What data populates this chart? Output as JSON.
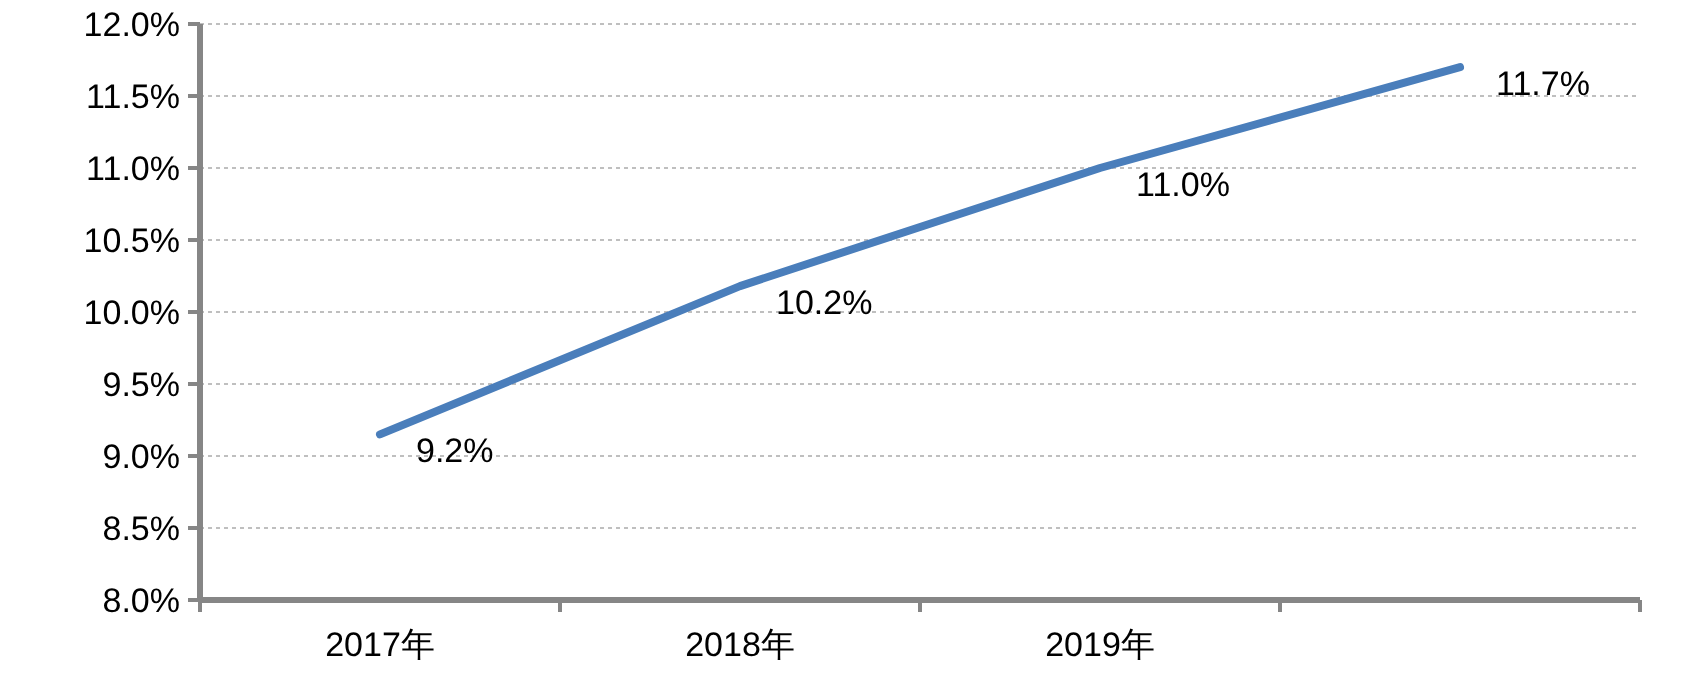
{
  "chart_data": {
    "type": "line",
    "categories": [
      "2017年",
      "2018年",
      "2019年",
      null
    ],
    "series": [
      {
        "color": "#4a7ebb",
        "values": [
          9.15,
          10.18,
          11.0,
          11.7
        ],
        "value_labels": [
          "9.2%",
          "10.2%",
          "11.0%",
          "11.7%"
        ]
      }
    ],
    "ylim": [
      8,
      12
    ],
    "yticks": [
      {
        "value": 8,
        "label": "8.0%"
      },
      {
        "value": 8.5,
        "label": "8.5%"
      },
      {
        "value": 9,
        "label": "9.0%"
      },
      {
        "value": 9.5,
        "label": "9.5%"
      },
      {
        "value": 10,
        "label": "10.0%"
      },
      {
        "value": 10.5,
        "label": "10.5%"
      },
      {
        "value": 11,
        "label": "11.0%"
      },
      {
        "value": 11.5,
        "label": "11.5%"
      },
      {
        "value": 12,
        "label": "12.0%"
      }
    ],
    "grid": "y",
    "marker": "none",
    "line_style": "solid"
  }
}
